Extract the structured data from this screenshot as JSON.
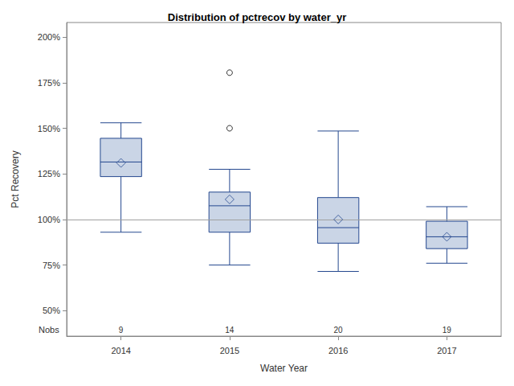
{
  "chart_data": {
    "type": "boxplot",
    "title": "Distribution of pctrecov by water_yr",
    "xlabel": "Water Year",
    "ylabel": "Pct Recovery",
    "categories": [
      "2014",
      "2015",
      "2016",
      "2017"
    ],
    "min": [
      93,
      75,
      71.5,
      76
    ],
    "q1": [
      123.5,
      93,
      87,
      84
    ],
    "median": [
      131.5,
      107.5,
      95.5,
      90.5
    ],
    "q3": [
      144.5,
      115,
      112,
      99
    ],
    "max": [
      153,
      127.5,
      148.5,
      107
    ],
    "mean": [
      131,
      111,
      100,
      90.5
    ],
    "outliers": [
      [],
      [
        150,
        180.5
      ],
      [],
      []
    ],
    "nobs_label": "Nobs",
    "nobs": [
      9,
      14,
      20,
      19
    ],
    "reference_line": 100,
    "color": "#cad5e6",
    "ylim": [
      36,
      208
    ],
    "yticks": [
      {
        "value": 50,
        "label": "50%"
      },
      {
        "value": 75,
        "label": "75%"
      },
      {
        "value": 100,
        "label": "100%"
      },
      {
        "value": 125,
        "label": "125%"
      },
      {
        "value": 150,
        "label": "150%"
      },
      {
        "value": 175,
        "label": "175%"
      },
      {
        "value": 200,
        "label": "200%"
      }
    ],
    "grid": false
  }
}
